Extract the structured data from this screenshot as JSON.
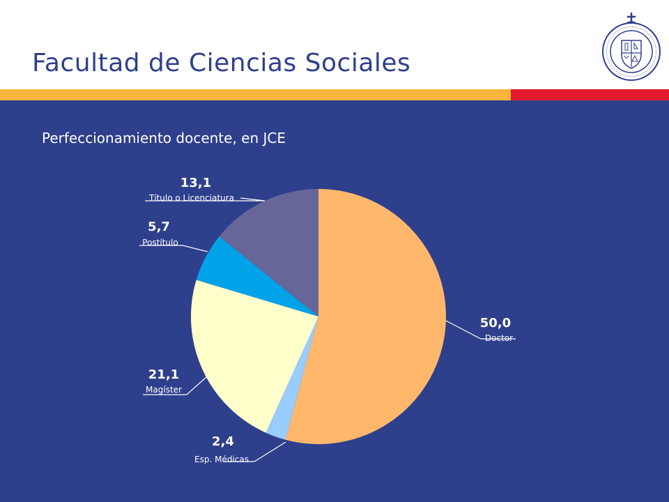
{
  "header": {
    "title": "Facultad de Ciencias Sociales"
  },
  "seal": {
    "ring_text": "PONTIFICIA UNIVERSIDAD CATÓLICA DE CHILE"
  },
  "colors": {
    "panel": "#2e3f8c",
    "title": "#2e3f8c",
    "stripe_orange": "#f7b53b",
    "stripe_red": "#e0192e"
  },
  "chart_data": {
    "type": "pie",
    "title": "Perfeccionamiento docente, en JCE",
    "slices": [
      {
        "label": "Doctor",
        "value": 50.0,
        "display": "50,0",
        "color": "#ffb86b"
      },
      {
        "label": "Esp. Médicas",
        "value": 2.4,
        "display": "2,4",
        "color": "#99ccff"
      },
      {
        "label": "Magíster",
        "value": 21.1,
        "display": "21,1",
        "color": "#ffffcc"
      },
      {
        "label": "Postítulo",
        "value": 5.7,
        "display": "5,7",
        "color": "#00a2e8"
      },
      {
        "label": "Título o Licenciatura",
        "value": 13.1,
        "display": "13,1",
        "color": "#666699"
      }
    ]
  }
}
